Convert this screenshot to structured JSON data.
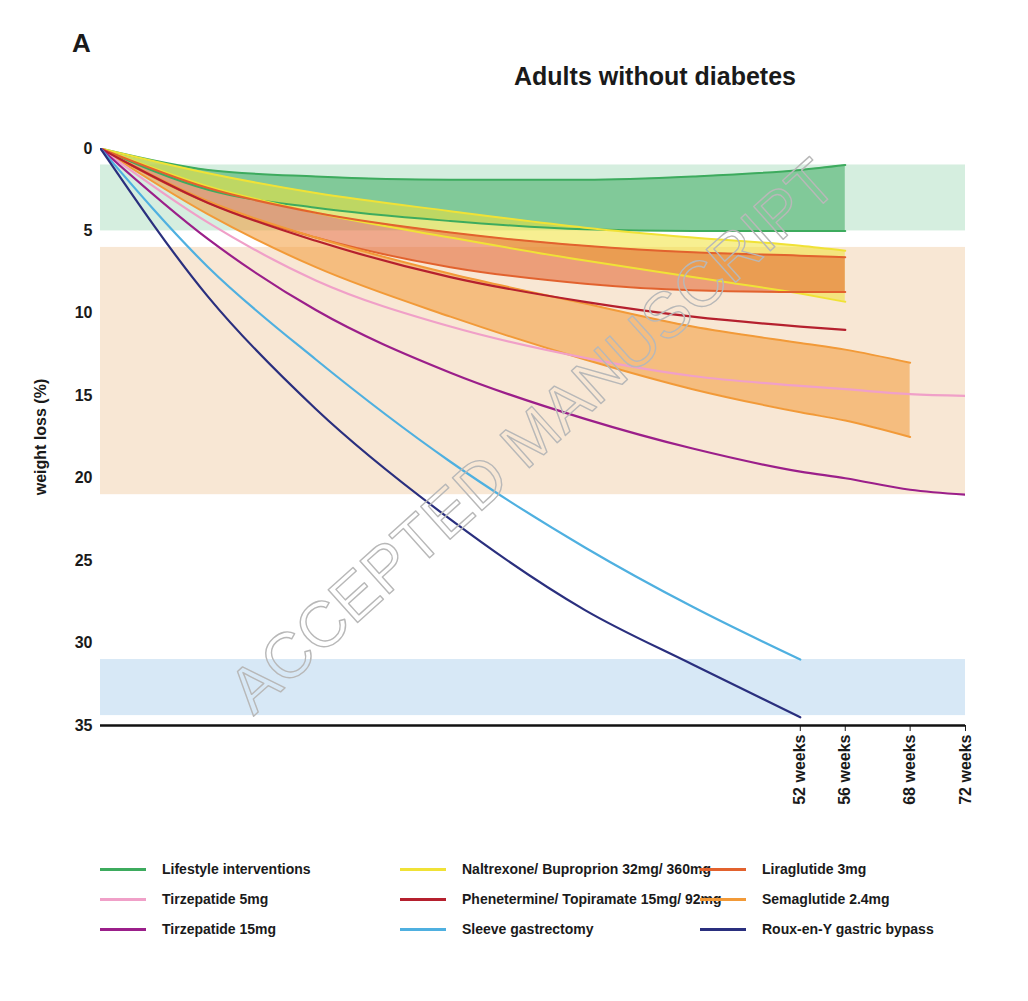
{
  "chart_data": {
    "type": "line",
    "panel_label": "A",
    "title": "Adults without diabetes",
    "y_label": "weight loss (%)",
    "watermark": "ACCEPTED MANUSCRIPT",
    "xlim": [
      0,
      72
    ],
    "xticks": [
      {
        "value": 52,
        "label": "52 weeks"
      },
      {
        "value": 56,
        "label": "56 weeks"
      },
      {
        "value": 68,
        "label": "68 weeks"
      },
      {
        "value": 72,
        "label": "72 weeks"
      }
    ],
    "ylim": [
      0,
      35
    ],
    "yticks": [
      0,
      5,
      10,
      15,
      20,
      25,
      30,
      35
    ],
    "grid": false,
    "bands": [
      {
        "y1": 1,
        "y2": 5,
        "color": "#d5eedf"
      },
      {
        "y1": 6,
        "y2": 21,
        "color": "#f8e7d4"
      },
      {
        "y1": 31,
        "y2": 34.4,
        "color": "#d7e8f6"
      }
    ],
    "series": [
      {
        "name": "Lifestyle interventions",
        "type": "area",
        "color": "#3dab5e",
        "x": [
          0,
          8,
          16,
          26,
          36,
          44,
          52,
          56
        ],
        "low": [
          0,
          1.3,
          1.7,
          1.9,
          1.9,
          1.7,
          1.3,
          1.0
        ],
        "high": [
          0,
          2.5,
          3.6,
          4.4,
          4.9,
          5.0,
          5.0,
          5.0
        ]
      },
      {
        "name": "Naltrexone/ Buproprion 32mg/ 360mg",
        "type": "area",
        "color": "#f0e236",
        "x": [
          0,
          8,
          16,
          26,
          36,
          44,
          52,
          56
        ],
        "low": [
          0,
          1.5,
          2.7,
          3.8,
          4.8,
          5.4,
          5.9,
          6.2
        ],
        "high": [
          0,
          2.3,
          3.9,
          5.4,
          6.8,
          7.8,
          8.8,
          9.3
        ]
      },
      {
        "name": "Liraglutide 3mg",
        "type": "area",
        "color": "#e2622e",
        "x": [
          0,
          8,
          16,
          26,
          36,
          44,
          52,
          56
        ],
        "low": [
          0,
          2.4,
          3.9,
          5.1,
          5.9,
          6.3,
          6.5,
          6.6
        ],
        "high": [
          0,
          3.3,
          5.4,
          7.2,
          8.2,
          8.6,
          8.7,
          8.7
        ]
      },
      {
        "name": "Tirzepatide 5mg",
        "type": "line",
        "color": "#f0a0c8",
        "x": [
          0,
          8,
          16,
          26,
          36,
          44,
          52,
          56,
          68,
          72
        ],
        "values": [
          0,
          4.5,
          8.0,
          10.8,
          12.7,
          13.8,
          14.4,
          14.6,
          14.9,
          15.0
        ]
      },
      {
        "name": "Phenetermine/ Topiramate 15mg/ 92mg",
        "type": "line",
        "color": "#b5202e",
        "x": [
          0,
          8,
          16,
          26,
          36,
          44,
          52,
          56
        ],
        "values": [
          0,
          3.3,
          5.6,
          7.8,
          9.3,
          10.2,
          10.8,
          11.0
        ]
      },
      {
        "name": "Semaglutide 2.4mg",
        "type": "area",
        "color": "#f29a38",
        "x": [
          0,
          8,
          16,
          26,
          36,
          44,
          52,
          56,
          68
        ],
        "low": [
          0,
          3.2,
          5.4,
          7.6,
          9.4,
          10.8,
          11.8,
          12.2,
          13.0
        ],
        "high": [
          0,
          4.0,
          7.2,
          10.2,
          12.8,
          14.6,
          16.0,
          16.5,
          17.5
        ]
      },
      {
        "name": "Tirzepatide 15mg",
        "type": "line",
        "color": "#9b1f8a",
        "x": [
          0,
          8,
          16,
          26,
          36,
          44,
          52,
          56,
          68,
          72
        ],
        "values": [
          0,
          5.5,
          9.8,
          13.6,
          16.4,
          18.2,
          19.6,
          20.0,
          20.7,
          21.0
        ]
      },
      {
        "name": "Sleeve gastrectomy",
        "type": "line",
        "color": "#4fb0e0",
        "x": [
          0,
          8,
          16,
          26,
          36,
          44,
          52
        ],
        "values": [
          0,
          7.2,
          12.8,
          19.0,
          24.2,
          27.8,
          31.0
        ]
      },
      {
        "name": "Roux-en-Y gastric bypass",
        "type": "line",
        "color": "#2a2f7e",
        "x": [
          0,
          8,
          16,
          26,
          36,
          44,
          52
        ],
        "values": [
          0,
          9.0,
          15.8,
          22.5,
          28.0,
          31.3,
          34.5
        ]
      }
    ]
  }
}
